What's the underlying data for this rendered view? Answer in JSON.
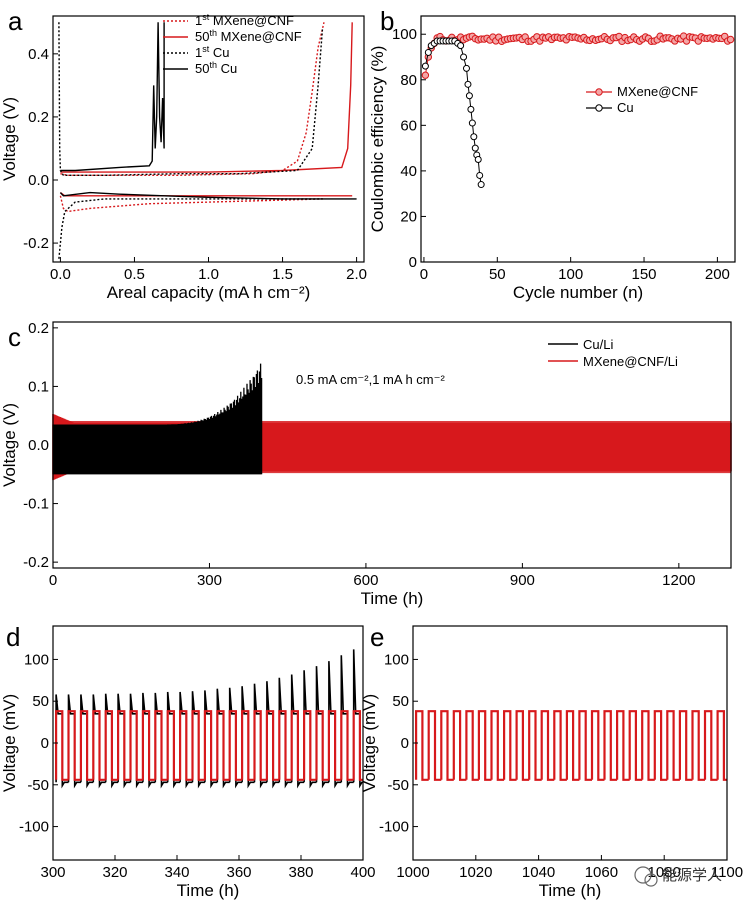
{
  "watermark": "能源学人",
  "colors": {
    "red": "#d7191c",
    "black": "#000000"
  },
  "chart_data": [
    {
      "id": "a",
      "panel_label": "a",
      "type": "line",
      "xlabel": "Areal capacity (mA h cm⁻²)",
      "ylabel": "Voltage (V)",
      "xlim": [
        -0.05,
        2.05
      ],
      "ylim": [
        -0.26,
        0.52
      ],
      "xticks": [
        "0.0",
        "0.5",
        "1.0",
        "1.5",
        "2.0"
      ],
      "xtick_values": [
        0,
        0.5,
        1.0,
        1.5,
        2.0
      ],
      "yticks": [
        "-0.2",
        "0.0",
        "0.2",
        "0.4"
      ],
      "ytick_values": [
        -0.2,
        0,
        0.2,
        0.4
      ],
      "series": [
        {
          "name": "1st MXene@CNF",
          "name_sup": "st",
          "name_base": "1",
          "name_rest": " MXene@CNF",
          "color": "#d7191c",
          "dash": "dotted",
          "x": [
            0,
            0.05,
            0.3,
            0.8,
            1.3,
            1.5,
            1.6,
            1.66,
            1.7,
            1.74,
            1.78
          ],
          "y": [
            0.02,
            0.015,
            0.015,
            0.015,
            0.02,
            0.03,
            0.06,
            0.15,
            0.28,
            0.42,
            0.5
          ]
        },
        {
          "name": "1st MXene@CNF discharge",
          "legend": false,
          "color": "#d7191c",
          "dash": "dotted",
          "x": [
            0,
            0.02,
            0.05,
            0.2,
            0.6,
            1.0,
            1.4,
            1.78
          ],
          "y": [
            -0.05,
            -0.09,
            -0.1,
            -0.09,
            -0.075,
            -0.07,
            -0.065,
            -0.06
          ]
        },
        {
          "name": "50th MXene@CNF",
          "name_sup": "th",
          "name_base": "50",
          "name_rest": " MXene@CNF",
          "color": "#d7191c",
          "dash": "solid",
          "x": [
            0,
            0.05,
            0.5,
            1.0,
            1.5,
            1.9,
            1.94,
            1.96,
            1.97
          ],
          "y": [
            0.025,
            0.025,
            0.025,
            0.025,
            0.03,
            0.04,
            0.1,
            0.3,
            0.5
          ]
        },
        {
          "name": "50th MXene@CNF discharge",
          "legend": false,
          "color": "#d7191c",
          "dash": "solid",
          "x": [
            0,
            0.03,
            0.3,
            0.8,
            1.4,
            1.97
          ],
          "y": [
            -0.04,
            -0.05,
            -0.05,
            -0.05,
            -0.05,
            -0.05
          ]
        },
        {
          "name": "1st Cu",
          "name_sup": "st",
          "name_base": "1",
          "name_rest": " Cu",
          "color": "#000000",
          "dash": "dotted",
          "x": [
            -0.01,
            -0.005,
            0,
            0.02,
            0.05,
            0.3,
            0.8,
            1.2,
            1.6,
            1.7,
            1.74,
            1.77
          ],
          "y": [
            0.5,
            0.1,
            0.03,
            0.015,
            0.015,
            0.015,
            0.02,
            0.02,
            0.03,
            0.1,
            0.3,
            0.48
          ]
        },
        {
          "name": "1st Cu discharge",
          "legend": false,
          "color": "#000000",
          "dash": "dotted",
          "x": [
            -0.01,
            0,
            0.01,
            0.03,
            0.1,
            0.3,
            0.8,
            1.3,
            1.77
          ],
          "y": [
            -0.25,
            -0.2,
            -0.15,
            -0.1,
            -0.07,
            -0.06,
            -0.06,
            -0.06,
            -0.06
          ]
        },
        {
          "name": "50th Cu",
          "name_sup": "th",
          "name_base": "50",
          "name_rest": " Cu",
          "color": "#000000",
          "dash": "solid",
          "x": [
            0,
            0.1,
            0.4,
            0.6,
            0.62,
            0.63,
            0.64,
            0.65,
            0.66,
            0.67,
            0.68,
            0.69,
            0.7,
            0.7
          ],
          "y": [
            0.03,
            0.03,
            0.04,
            0.045,
            0.06,
            0.3,
            0.1,
            0.2,
            0.5,
            0.2,
            0.12,
            0.26,
            0.1,
            0.5
          ]
        },
        {
          "name": "50th Cu discharge",
          "legend": false,
          "color": "#000000",
          "dash": "solid",
          "x": [
            0,
            0.02,
            0.2,
            0.4,
            0.7,
            1.0,
            1.5,
            2.0
          ],
          "y": [
            -0.04,
            -0.05,
            -0.04,
            -0.045,
            -0.05,
            -0.055,
            -0.06,
            -0.06
          ]
        }
      ]
    },
    {
      "id": "b",
      "panel_label": "b",
      "type": "line",
      "xlabel": "Cycle number (n)",
      "ylabel": "Coulombic efficiency (%)",
      "xlim": [
        -2,
        212
      ],
      "ylim": [
        0,
        108
      ],
      "xticks": [
        "0",
        "50",
        "100",
        "150",
        "200"
      ],
      "xtick_values": [
        0,
        50,
        100,
        150,
        200
      ],
      "yticks": [
        "0",
        "20",
        "40",
        "60",
        "80",
        "100"
      ],
      "ytick_values": [
        0,
        20,
        40,
        60,
        80,
        100
      ],
      "series": [
        {
          "name": "MXene@CNF",
          "color": "#d7191c",
          "marker": "circle",
          "fill": "#f4a6a6",
          "generate": {
            "from": 1,
            "to": 210,
            "step": 2,
            "start_values": [
              82,
              90,
              94,
              96
            ],
            "mean": 98,
            "noise": 1.2
          }
        },
        {
          "name": "Cu",
          "color": "#000000",
          "marker": "circle",
          "fill": "none",
          "x": [
            1,
            3,
            5,
            7,
            9,
            11,
            13,
            15,
            17,
            19,
            21,
            23,
            25,
            27,
            29,
            30,
            31,
            32,
            33,
            34,
            35,
            36,
            37,
            38,
            39
          ],
          "y": [
            86,
            92,
            95,
            96,
            97,
            97,
            97,
            97,
            97,
            97,
            97,
            96,
            95,
            90,
            85,
            78,
            73,
            67,
            61,
            55,
            50,
            47,
            45,
            38,
            34
          ]
        }
      ]
    },
    {
      "id": "c",
      "panel_label": "c",
      "type": "line",
      "xlabel": "Time (h)",
      "ylabel": "Voltage (V)",
      "annotation": "0.5 mA cm⁻²,1 mA h cm⁻²",
      "xlim": [
        0,
        1300
      ],
      "ylim": [
        -0.21,
        0.21
      ],
      "xticks": [
        "0",
        "300",
        "600",
        "900",
        "1200"
      ],
      "xtick_values": [
        0,
        300,
        600,
        900,
        1200
      ],
      "yticks": [
        "-0.2",
        "-0.1",
        "0.0",
        "0.1",
        "0.2"
      ],
      "ytick_values": [
        -0.2,
        -0.1,
        0,
        0.1,
        0.2
      ],
      "series": [
        {
          "name": "Cu/Li",
          "color": "#000000",
          "envelope": {
            "t_end": 400,
            "lower": -0.05,
            "upper_base": 0.035,
            "upper_peak": 0.145
          }
        },
        {
          "name": "MXene@CNF/Li",
          "color": "#d7191c",
          "envelope": {
            "t_end": 1300,
            "lower": -0.045,
            "upper_base": 0.038,
            "start_amplitude": 0.06
          }
        }
      ]
    },
    {
      "id": "d",
      "panel_label": "d",
      "type": "line",
      "xlabel": "Time (h)",
      "ylabel": "Voltage (mV)",
      "xlim": [
        300,
        400
      ],
      "ylim": [
        -140,
        140
      ],
      "xticks": [
        "300",
        "320",
        "340",
        "360",
        "380",
        "400"
      ],
      "xtick_values": [
        300,
        320,
        340,
        360,
        380,
        400
      ],
      "yticks": [
        "-100",
        "-50",
        "0",
        "50",
        "100"
      ],
      "ytick_values": [
        -100,
        -50,
        0,
        50,
        100
      ],
      "series": [
        {
          "name": "Cu/Li",
          "color": "#000000",
          "period_h": 4,
          "plateau_high": 35,
          "plateau_low": -47,
          "spikes": [
            58,
            58,
            58,
            58,
            59,
            59,
            59,
            60,
            60,
            61,
            61,
            62,
            63,
            65,
            66,
            68,
            71,
            74,
            78,
            82,
            87,
            92,
            98,
            105,
            112
          ]
        },
        {
          "name": "MXene@CNF/Li",
          "color": "#d7191c",
          "period_h": 4,
          "plateau_high": 38,
          "plateau_low": -44
        }
      ]
    },
    {
      "id": "e",
      "panel_label": "e",
      "type": "line",
      "xlabel": "Time (h)",
      "ylabel": "Voltage (mV)",
      "xlim": [
        1000,
        1100
      ],
      "ylim": [
        -140,
        140
      ],
      "xticks": [
        "1000",
        "1020",
        "1040",
        "1060",
        "1080",
        "1100"
      ],
      "xtick_values": [
        1000,
        1020,
        1040,
        1060,
        1080,
        1100
      ],
      "yticks": [
        "-100",
        "-50",
        "0",
        "50",
        "100"
      ],
      "ytick_values": [
        -100,
        -50,
        0,
        50,
        100
      ],
      "series": [
        {
          "name": "MXene@CNF/Li",
          "color": "#d7191c",
          "period_h": 4,
          "plateau_high": 38,
          "plateau_low": -44
        }
      ]
    }
  ]
}
